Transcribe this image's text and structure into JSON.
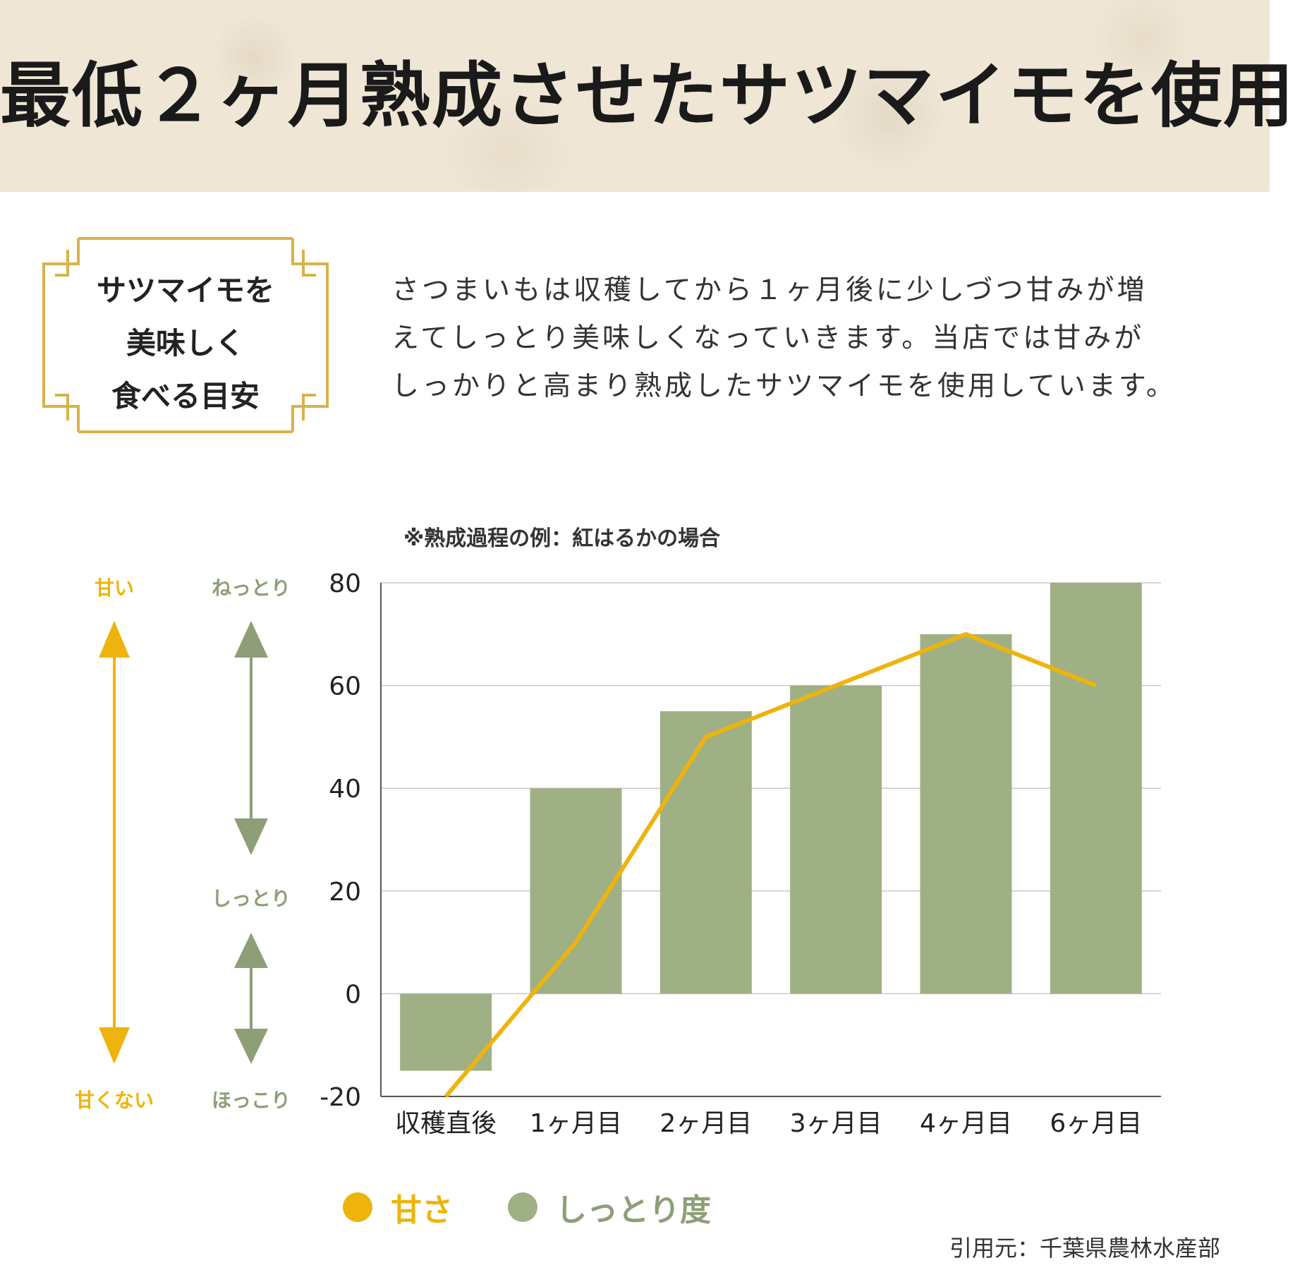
{
  "header": {
    "title": "最低２ヶ月熟成させたサツマイモを使用"
  },
  "badge": {
    "lines": [
      "サツマイモを",
      "美味しく",
      "食べる目安"
    ]
  },
  "intro": {
    "lines": [
      "さつまいもは収穫してから１ヶ月後に少しづつ甘みが増",
      "えてしっとり美味しくなっていきます。当店では甘みが",
      "しっかりと高まり熟成したサツマイモを使用しています。"
    ]
  },
  "scale": {
    "sweet_top": "甘い",
    "sweet_bottom": "甘くない",
    "moist_top": "ねっとり",
    "moist_mid": "しっとり",
    "moist_bottom": "ほっこり"
  },
  "legend": {
    "sweetness": "甘さ",
    "moistness": "しっとり度"
  },
  "source": "引用元：千葉県農林水産部",
  "colors": {
    "sweetness": "#eeb40d",
    "moistness": "#a0b085",
    "grid": "#c9c9c9"
  },
  "chart_data": {
    "type": "bar",
    "title": "※熟成過程の例：紅はるかの場合",
    "categories": [
      "収穫直後",
      "1ヶ月目",
      "2ヶ月目",
      "3ヶ月目",
      "4ヶ月目",
      "6ヶ月目"
    ],
    "series": [
      {
        "name": "しっとり度",
        "type": "bar",
        "values": [
          -15,
          40,
          55,
          60,
          70,
          80
        ]
      },
      {
        "name": "甘さ",
        "type": "line",
        "values": [
          -20,
          10,
          50,
          60,
          70,
          60
        ]
      }
    ],
    "ylim": [
      -20,
      80
    ],
    "yticks": [
      80,
      60,
      40,
      20,
      0,
      -20
    ],
    "grid": true,
    "legend": "bottom"
  }
}
